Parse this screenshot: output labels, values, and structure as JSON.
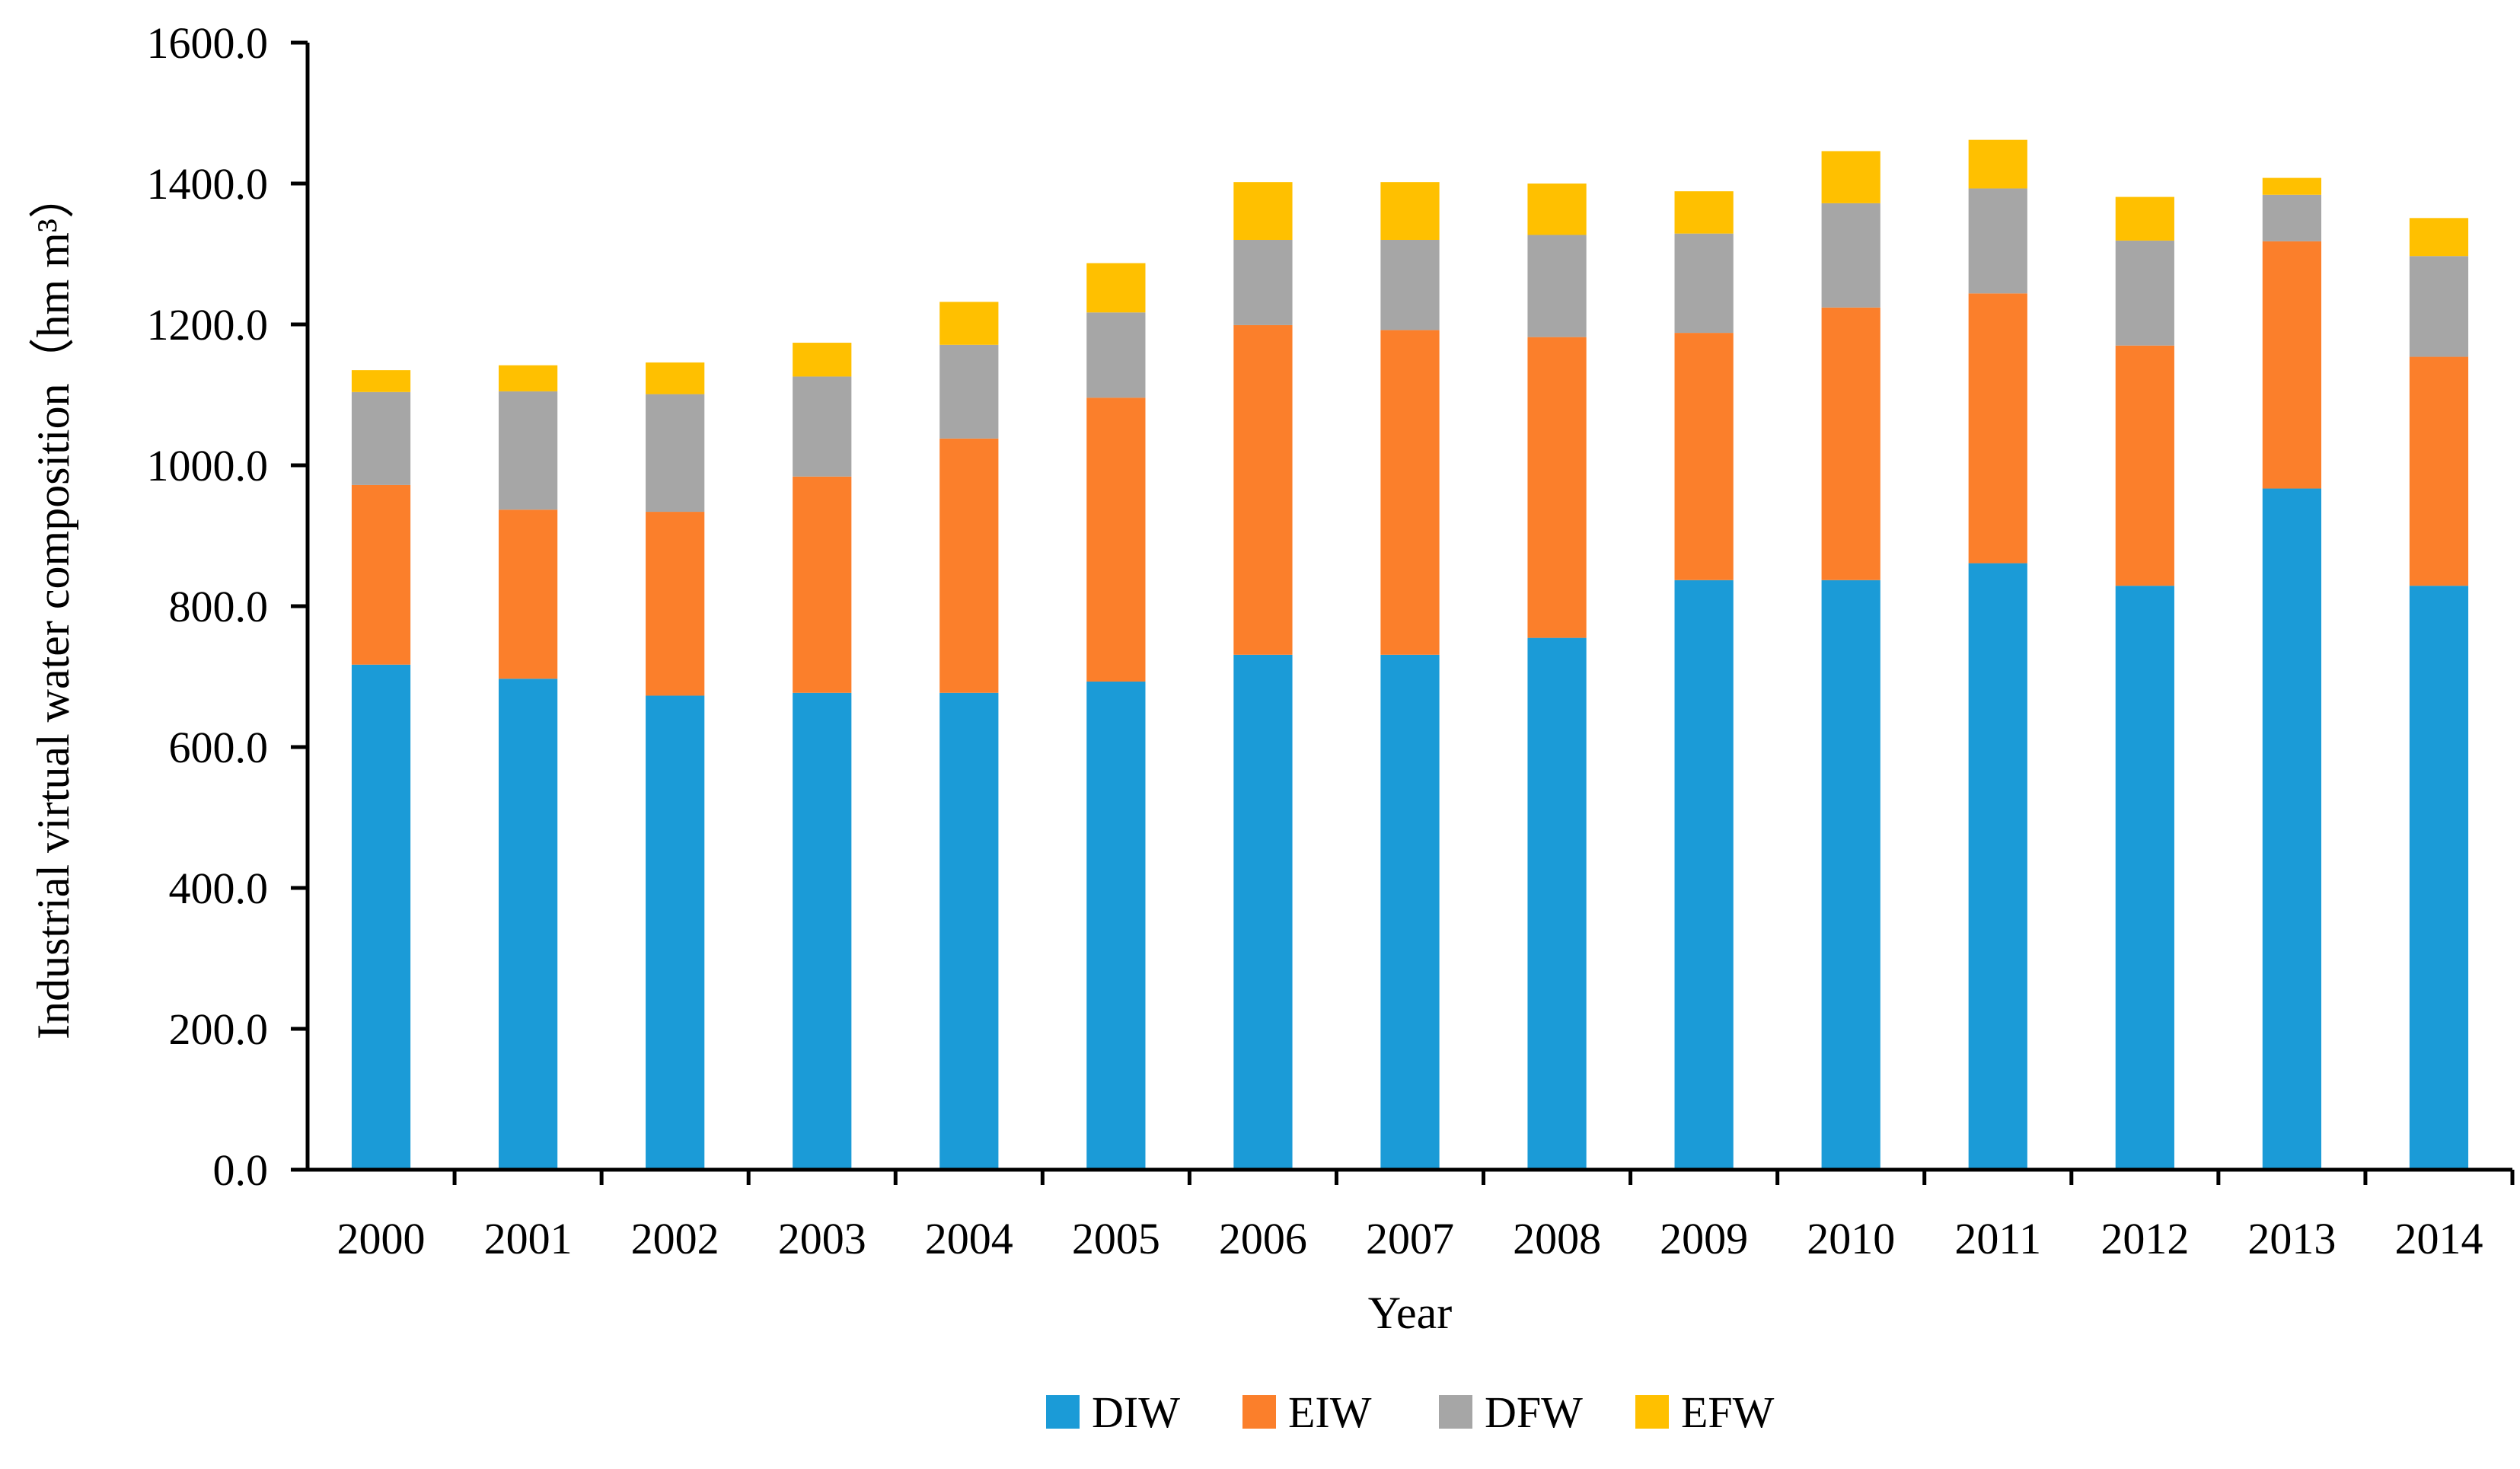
{
  "chart_data": {
    "type": "bar",
    "stacked": true,
    "title": "",
    "xlabel": "Year",
    "ylabel": "Industrial virtual water composition（hm m³）",
    "ylim": [
      0,
      1600
    ],
    "yticks": [
      "0.0",
      "200.0",
      "400.0",
      "600.0",
      "800.0",
      "1000.0",
      "1200.0",
      "1400.0",
      "1600.0"
    ],
    "categories": [
      "2000",
      "2001",
      "2002",
      "2003",
      "2004",
      "2005",
      "2006",
      "2007",
      "2008",
      "2009",
      "2010",
      "2011",
      "2012",
      "2013",
      "2014"
    ],
    "legend_position": "bottom",
    "grid": false,
    "series": [
      {
        "name": "DIW",
        "color": "#1B9BD7",
        "values": [
          717,
          697,
          673,
          677,
          677,
          693,
          731,
          731,
          755,
          837,
          837,
          861,
          829,
          967,
          829
        ]
      },
      {
        "name": "EIW",
        "color": "#FB7F2B",
        "values": [
          255,
          240,
          261,
          307,
          361,
          403,
          468,
          461,
          427,
          351,
          387,
          383,
          341,
          351,
          325
        ]
      },
      {
        "name": "DFW",
        "color": "#A6A6A6",
        "values": [
          132,
          168,
          167,
          142,
          133,
          121,
          121,
          128,
          145,
          141,
          148,
          149,
          149,
          66,
          143
        ]
      },
      {
        "name": "EFW",
        "color": "#FFC000",
        "values": [
          31,
          37,
          45,
          48,
          61,
          70,
          82,
          82,
          73,
          60,
          74,
          69,
          62,
          24,
          54
        ]
      }
    ]
  }
}
